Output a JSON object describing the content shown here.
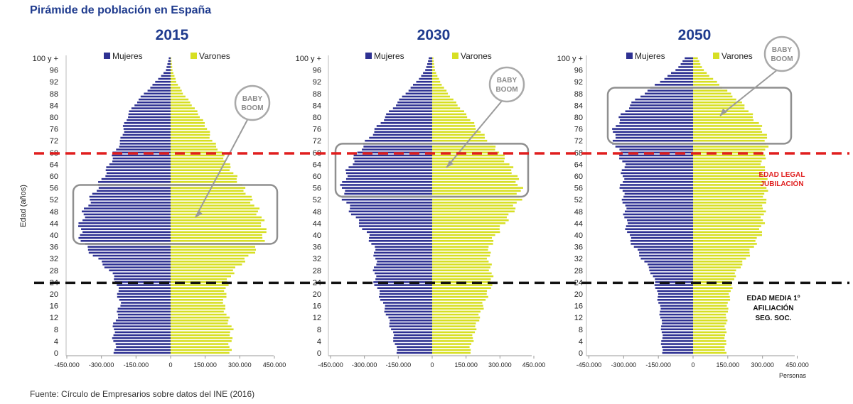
{
  "title": "Pirámide de población en España",
  "source": "Fuente: Círculo de Empresarios sobre datos del INE (2016)",
  "colors": {
    "mujeres": "#2e3192",
    "varones": "#d7df23",
    "jubilacion_line": "#e01e1e",
    "afiliacion_line": "#111111",
    "boom_box": "#8f8f8f"
  },
  "chart_data": {
    "type": "bar",
    "orientation": "horizontal",
    "ylabel": "Edad (años)",
    "xlabel": "Personas",
    "y_tick_labels": [
      "100 y +",
      "96",
      "92",
      "88",
      "84",
      "80",
      "76",
      "72",
      "68",
      "64",
      "60",
      "56",
      "52",
      "48",
      "44",
      "40",
      "36",
      "32",
      "28",
      "24",
      "20",
      "16",
      "12",
      "8",
      "4",
      "0"
    ],
    "x_tick_labels": [
      "-450.000",
      "-300.000",
      "-150.000",
      "0",
      "150.000",
      "300.000",
      "450.000"
    ],
    "xlim": [
      -450000,
      450000
    ],
    "legend": [
      "Mujeres",
      "Varones"
    ],
    "baby_boom_label": [
      "BABY",
      "BOOM"
    ],
    "annotations": {
      "jubilacion": {
        "age": 67,
        "label": [
          "EDAD LEGAL",
          "JUBILACIÓN"
        ]
      },
      "afiliacion": {
        "age": 24,
        "label": [
          "EDAD MEDIA 1º",
          "AFILIACIÓN",
          "SEG. SOC."
        ]
      }
    },
    "pyramids": [
      {
        "year": "2015",
        "boom_ages": [
          37,
          57
        ],
        "male_ctrl": [
          [
            0,
            255000
          ],
          [
            8,
            265000
          ],
          [
            16,
            230000
          ],
          [
            24,
            245000
          ],
          [
            28,
            275000
          ],
          [
            32,
            330000
          ],
          [
            36,
            380000
          ],
          [
            40,
            410000
          ],
          [
            44,
            400000
          ],
          [
            48,
            380000
          ],
          [
            52,
            350000
          ],
          [
            56,
            315000
          ],
          [
            60,
            280000
          ],
          [
            64,
            250000
          ],
          [
            68,
            220000
          ],
          [
            72,
            180000
          ],
          [
            76,
            160000
          ],
          [
            80,
            130000
          ],
          [
            84,
            95000
          ],
          [
            88,
            55000
          ],
          [
            92,
            25000
          ],
          [
            96,
            8000
          ],
          [
            100,
            3000
          ]
        ],
        "female_ctrl": [
          [
            0,
            240000
          ],
          [
            8,
            250000
          ],
          [
            16,
            220000
          ],
          [
            24,
            235000
          ],
          [
            28,
            265000
          ],
          [
            32,
            320000
          ],
          [
            36,
            370000
          ],
          [
            40,
            395000
          ],
          [
            44,
            390000
          ],
          [
            48,
            375000
          ],
          [
            52,
            350000
          ],
          [
            56,
            320000
          ],
          [
            60,
            290000
          ],
          [
            64,
            265000
          ],
          [
            68,
            245000
          ],
          [
            72,
            215000
          ],
          [
            76,
            205000
          ],
          [
            80,
            190000
          ],
          [
            84,
            160000
          ],
          [
            88,
            115000
          ],
          [
            92,
            65000
          ],
          [
            96,
            20000
          ],
          [
            100,
            8000
          ]
        ]
      },
      {
        "year": "2030",
        "boom_ages": [
          53,
          71
        ],
        "male_ctrl": [
          [
            0,
            165000
          ],
          [
            8,
            190000
          ],
          [
            16,
            225000
          ],
          [
            24,
            265000
          ],
          [
            28,
            260000
          ],
          [
            32,
            250000
          ],
          [
            36,
            255000
          ],
          [
            40,
            280000
          ],
          [
            44,
            320000
          ],
          [
            48,
            355000
          ],
          [
            52,
            385000
          ],
          [
            56,
            390000
          ],
          [
            60,
            370000
          ],
          [
            64,
            340000
          ],
          [
            68,
            300000
          ],
          [
            72,
            250000
          ],
          [
            76,
            200000
          ],
          [
            80,
            160000
          ],
          [
            84,
            115000
          ],
          [
            88,
            70000
          ],
          [
            92,
            35000
          ],
          [
            96,
            12000
          ],
          [
            100,
            5000
          ]
        ],
        "female_ctrl": [
          [
            0,
            155000
          ],
          [
            8,
            180000
          ],
          [
            16,
            215000
          ],
          [
            24,
            255000
          ],
          [
            28,
            255000
          ],
          [
            32,
            250000
          ],
          [
            36,
            260000
          ],
          [
            40,
            285000
          ],
          [
            44,
            325000
          ],
          [
            48,
            360000
          ],
          [
            52,
            390000
          ],
          [
            56,
            400000
          ],
          [
            60,
            385000
          ],
          [
            64,
            360000
          ],
          [
            68,
            330000
          ],
          [
            72,
            290000
          ],
          [
            76,
            250000
          ],
          [
            80,
            210000
          ],
          [
            84,
            165000
          ],
          [
            88,
            120000
          ],
          [
            92,
            70000
          ],
          [
            96,
            30000
          ],
          [
            100,
            15000
          ]
        ]
      },
      {
        "year": "2050",
        "boom_ages": [
          71,
          90
        ],
        "male_ctrl": [
          [
            0,
            140000
          ],
          [
            8,
            140000
          ],
          [
            16,
            150000
          ],
          [
            24,
            170000
          ],
          [
            28,
            190000
          ],
          [
            32,
            230000
          ],
          [
            36,
            260000
          ],
          [
            40,
            290000
          ],
          [
            44,
            300000
          ],
          [
            48,
            305000
          ],
          [
            52,
            310000
          ],
          [
            56,
            315000
          ],
          [
            60,
            310000
          ],
          [
            64,
            300000
          ],
          [
            68,
            310000
          ],
          [
            72,
            320000
          ],
          [
            76,
            300000
          ],
          [
            80,
            260000
          ],
          [
            84,
            220000
          ],
          [
            88,
            160000
          ],
          [
            92,
            100000
          ],
          [
            96,
            45000
          ],
          [
            100,
            20000
          ]
        ],
        "female_ctrl": [
          [
            0,
            135000
          ],
          [
            8,
            135000
          ],
          [
            16,
            145000
          ],
          [
            24,
            165000
          ],
          [
            28,
            185000
          ],
          [
            32,
            220000
          ],
          [
            36,
            255000
          ],
          [
            40,
            280000
          ],
          [
            44,
            290000
          ],
          [
            48,
            295000
          ],
          [
            52,
            300000
          ],
          [
            56,
            310000
          ],
          [
            60,
            305000
          ],
          [
            64,
            300000
          ],
          [
            68,
            320000
          ],
          [
            72,
            345000
          ],
          [
            76,
            340000
          ],
          [
            80,
            315000
          ],
          [
            84,
            275000
          ],
          [
            88,
            215000
          ],
          [
            92,
            145000
          ],
          [
            96,
            75000
          ],
          [
            100,
            35000
          ]
        ]
      }
    ]
  }
}
